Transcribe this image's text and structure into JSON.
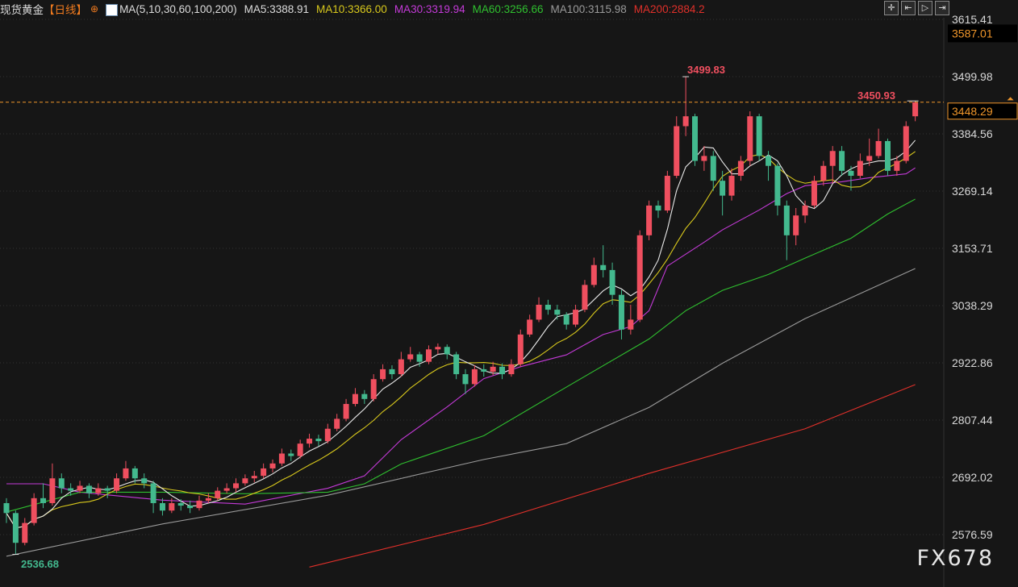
{
  "header": {
    "title": "现货黄金",
    "period": "【日线】",
    "globe_icon": "globe-icon",
    "ma_icon": "ma-indicator-icon",
    "ma_params": "MA(5,10,30,60,100,200)",
    "ma5": "MA5:3388.91",
    "ma10": "MA10:3366.00",
    "ma30": "MA30:3319.94",
    "ma60": "MA60:3256.66",
    "ma100": "MA100:3115.98",
    "ma200": "MA200:2884.2"
  },
  "toolbar": [
    "crosshair-icon",
    "zoom-left-icon",
    "play-icon",
    "go-to-end-icon"
  ],
  "watermark": "FX678",
  "colors": {
    "up": "#ef4f5f",
    "down": "#43b98e",
    "ma5": "#e8e8e8",
    "ma10": "#d8c81c",
    "ma30": "#c43ad8",
    "ma60": "#2fc02f",
    "ma100": "#9a9a9a",
    "ma200": "#e0302a",
    "accent": "#f0962a"
  },
  "chart_data": {
    "type": "candlestick",
    "ylim": [
      2510,
      3640
    ],
    "yticks": [
      "3615.41",
      "3499.98",
      "3384.56",
      "3269.14",
      "3153.71",
      "3038.29",
      "2922.86",
      "2807.44",
      "2692.02",
      "2576.59"
    ],
    "price_tags": {
      "high_marker": "3587.01",
      "current": "3448.29"
    },
    "annotations": {
      "max": "3499.83",
      "min": "2536.68",
      "last_high": "3450.93"
    },
    "ohlc": [
      [
        2640,
        2650,
        2600,
        2620
      ],
      [
        2620,
        2625,
        2536.68,
        2560
      ],
      [
        2560,
        2610,
        2555,
        2600
      ],
      [
        2600,
        2660,
        2595,
        2650
      ],
      [
        2650,
        2680,
        2630,
        2640
      ],
      [
        2640,
        2720,
        2635,
        2690
      ],
      [
        2690,
        2700,
        2660,
        2670
      ],
      [
        2670,
        2680,
        2655,
        2665
      ],
      [
        2665,
        2685,
        2660,
        2675
      ],
      [
        2675,
        2680,
        2650,
        2660
      ],
      [
        2660,
        2680,
        2655,
        2670
      ],
      [
        2670,
        2675,
        2650,
        2665
      ],
      [
        2665,
        2700,
        2660,
        2690
      ],
      [
        2690,
        2725,
        2685,
        2710
      ],
      [
        2710,
        2715,
        2680,
        2690
      ],
      [
        2690,
        2700,
        2670,
        2680
      ],
      [
        2680,
        2685,
        2620,
        2640
      ],
      [
        2640,
        2650,
        2615,
        2625
      ],
      [
        2625,
        2650,
        2620,
        2640
      ],
      [
        2640,
        2648,
        2625,
        2635
      ],
      [
        2635,
        2645,
        2620,
        2630
      ],
      [
        2630,
        2655,
        2625,
        2645
      ],
      [
        2645,
        2660,
        2640,
        2650
      ],
      [
        2650,
        2672,
        2645,
        2665
      ],
      [
        2665,
        2680,
        2660,
        2670
      ],
      [
        2670,
        2690,
        2662,
        2680
      ],
      [
        2680,
        2698,
        2675,
        2690
      ],
      [
        2690,
        2705,
        2682,
        2695
      ],
      [
        2695,
        2720,
        2690,
        2710
      ],
      [
        2710,
        2728,
        2702,
        2720
      ],
      [
        2720,
        2750,
        2715,
        2740
      ],
      [
        2740,
        2748,
        2725,
        2735
      ],
      [
        2735,
        2768,
        2730,
        2760
      ],
      [
        2760,
        2780,
        2752,
        2770
      ],
      [
        2770,
        2778,
        2755,
        2765
      ],
      [
        2765,
        2800,
        2760,
        2790
      ],
      [
        2790,
        2820,
        2785,
        2810
      ],
      [
        2810,
        2850,
        2805,
        2840
      ],
      [
        2840,
        2872,
        2835,
        2860
      ],
      [
        2860,
        2868,
        2840,
        2850
      ],
      [
        2850,
        2900,
        2845,
        2890
      ],
      [
        2890,
        2920,
        2885,
        2910
      ],
      [
        2910,
        2918,
        2890,
        2900
      ],
      [
        2900,
        2945,
        2895,
        2930
      ],
      [
        2930,
        2955,
        2925,
        2940
      ],
      [
        2940,
        2945,
        2915,
        2925
      ],
      [
        2925,
        2958,
        2920,
        2950
      ],
      [
        2950,
        2962,
        2940,
        2955
      ],
      [
        2955,
        2960,
        2930,
        2940
      ],
      [
        2940,
        2945,
        2890,
        2900
      ],
      [
        2900,
        2910,
        2860,
        2880
      ],
      [
        2880,
        2918,
        2875,
        2910
      ],
      [
        2910,
        2920,
        2895,
        2905
      ],
      [
        2905,
        2925,
        2898,
        2915
      ],
      [
        2915,
        2922,
        2890,
        2900
      ],
      [
        2900,
        2930,
        2895,
        2920
      ],
      [
        2920,
        2990,
        2915,
        2980
      ],
      [
        2980,
        3020,
        2975,
        3010
      ],
      [
        3010,
        3055,
        3005,
        3040
      ],
      [
        3040,
        3050,
        3020,
        3030
      ],
      [
        3030,
        3040,
        3010,
        3020
      ],
      [
        3020,
        3025,
        2990,
        3000
      ],
      [
        3000,
        3040,
        2995,
        3030
      ],
      [
        3030,
        3090,
        3025,
        3080
      ],
      [
        3080,
        3135,
        3075,
        3120
      ],
      [
        3120,
        3160,
        3095,
        3110
      ],
      [
        3110,
        3125,
        3040,
        3060
      ],
      [
        3060,
        3070,
        2970,
        2990
      ],
      [
        2990,
        3040,
        2980,
        3010
      ],
      [
        3010,
        3190,
        3005,
        3180
      ],
      [
        3180,
        3250,
        3170,
        3240
      ],
      [
        3240,
        3250,
        3215,
        3230
      ],
      [
        3230,
        3310,
        3225,
        3300
      ],
      [
        3300,
        3420,
        3295,
        3400
      ],
      [
        3400,
        3499.83,
        3380,
        3420
      ],
      [
        3420,
        3425,
        3320,
        3330
      ],
      [
        3330,
        3360,
        3310,
        3340
      ],
      [
        3340,
        3350,
        3270,
        3290
      ],
      [
        3290,
        3310,
        3220,
        3260
      ],
      [
        3260,
        3315,
        3250,
        3300
      ],
      [
        3300,
        3340,
        3290,
        3330
      ],
      [
        3330,
        3430,
        3320,
        3420
      ],
      [
        3420,
        3425,
        3330,
        3340
      ],
      [
        3340,
        3350,
        3290,
        3320
      ],
      [
        3320,
        3325,
        3220,
        3240
      ],
      [
        3240,
        3250,
        3130,
        3180
      ],
      [
        3180,
        3235,
        3160,
        3220
      ],
      [
        3220,
        3250,
        3205,
        3240
      ],
      [
        3240,
        3300,
        3235,
        3290
      ],
      [
        3290,
        3330,
        3280,
        3320
      ],
      [
        3320,
        3360,
        3285,
        3350
      ],
      [
        3350,
        3360,
        3300,
        3310
      ],
      [
        3310,
        3320,
        3270,
        3300
      ],
      [
        3300,
        3345,
        3295,
        3330
      ],
      [
        3330,
        3375,
        3320,
        3340
      ],
      [
        3340,
        3395,
        3335,
        3370
      ],
      [
        3370,
        3375,
        3300,
        3310
      ],
      [
        3310,
        3340,
        3300,
        3330
      ],
      [
        3330,
        3410,
        3325,
        3400
      ],
      [
        3420,
        3450.93,
        3410,
        3448.29
      ]
    ],
    "ma_lines": {
      "ma30": [
        [
          0,
          2679
        ],
        [
          4,
          2679
        ],
        [
          8,
          2662
        ],
        [
          17,
          2646
        ],
        [
          26,
          2638
        ],
        [
          35,
          2670
        ],
        [
          39,
          2695
        ],
        [
          43,
          2768
        ],
        [
          48,
          2834
        ],
        [
          52,
          2891
        ],
        [
          56,
          2915
        ],
        [
          61,
          2939
        ],
        [
          65,
          2980
        ],
        [
          68,
          2996
        ],
        [
          70,
          3028
        ],
        [
          72,
          3118
        ],
        [
          76,
          3166
        ],
        [
          78,
          3191
        ],
        [
          82,
          3231
        ],
        [
          85,
          3264
        ],
        [
          87,
          3280
        ],
        [
          91,
          3288
        ],
        [
          94,
          3296
        ],
        [
          98,
          3304
        ],
        [
          99,
          3316
        ]
      ],
      "ma60": [
        [
          0,
          2622
        ],
        [
          8,
          2662
        ],
        [
          17,
          2662
        ],
        [
          26,
          2659
        ],
        [
          35,
          2662
        ],
        [
          39,
          2679
        ],
        [
          43,
          2719
        ],
        [
          52,
          2776
        ],
        [
          61,
          2874
        ],
        [
          70,
          2971
        ],
        [
          74,
          3028
        ],
        [
          78,
          3069
        ],
        [
          83,
          3101
        ],
        [
          87,
          3134
        ],
        [
          92,
          3174
        ],
        [
          96,
          3223
        ],
        [
          99,
          3253
        ]
      ],
      "ma100": [
        [
          0,
          2533
        ],
        [
          17,
          2598
        ],
        [
          35,
          2656
        ],
        [
          52,
          2728
        ],
        [
          61,
          2760
        ],
        [
          70,
          2833
        ],
        [
          78,
          2922
        ],
        [
          87,
          3012
        ],
        [
          99,
          3113
        ]
      ],
      "ma200": [
        [
          33,
          2511
        ],
        [
          52,
          2597
        ],
        [
          70,
          2700
        ],
        [
          87,
          2790
        ],
        [
          99,
          2879
        ]
      ]
    }
  }
}
